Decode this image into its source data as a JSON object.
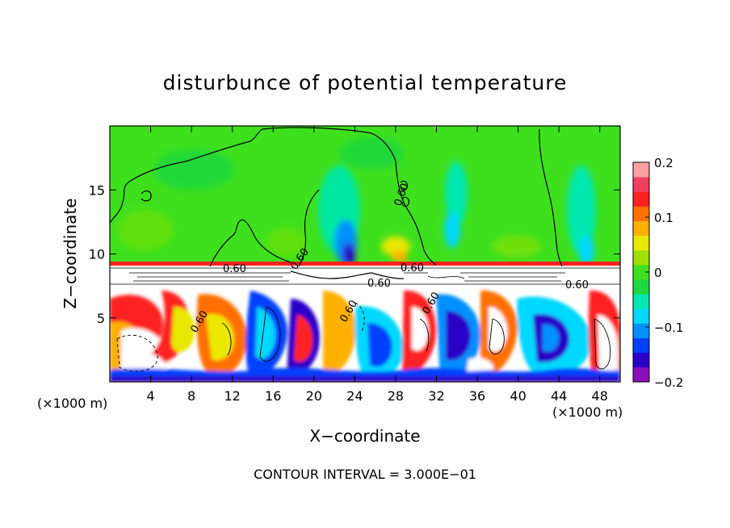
{
  "chart_data": {
    "type": "heatmap",
    "title": "disturbunce of potential temperature",
    "xlabel": "X−coordinate",
    "ylabel": "Z−coordinate",
    "x_unit_left": "(×1000 m)",
    "x_unit_right": "(×1000 m)",
    "xlim": [
      0,
      50
    ],
    "ylim": [
      0,
      20
    ],
    "x_ticks": [
      4,
      8,
      12,
      16,
      20,
      24,
      28,
      32,
      36,
      40,
      44,
      48
    ],
    "y_ticks": [
      5,
      10,
      15
    ],
    "colorbar": {
      "range": [
        -0.2,
        0.2
      ],
      "tick_values": [
        0.2,
        0.1,
        0,
        -0.1,
        -0.2
      ],
      "tick_labels": [
        "0.2",
        "0.1",
        "0",
        "−0.1",
        "−0.2"
      ],
      "colors": [
        "#8a0fb8",
        "#2a00c8",
        "#0040ff",
        "#0090ff",
        "#00d8ff",
        "#00e8b0",
        "#20d840",
        "#40e020",
        "#a0e000",
        "#e8e800",
        "#ffb000",
        "#ff7000",
        "#ff2020",
        "#f04060",
        "#ffa0a0"
      ]
    },
    "contour_labels": [
      "0.60",
      "0.60",
      "0.60",
      "0.60",
      "0.60",
      "0.60",
      "0.60",
      "0.60",
      "0.60"
    ],
    "footer": "CONTOUR INTERVAL = 3.000E−01"
  }
}
